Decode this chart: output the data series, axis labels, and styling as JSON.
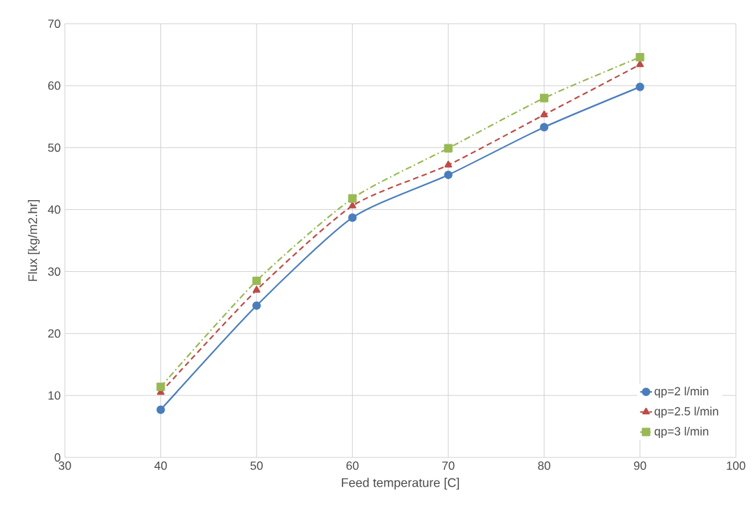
{
  "chart_data": {
    "type": "line",
    "xlabel": "Feed temperature [C]",
    "ylabel": "Flux [kg/m2.hr]",
    "x": [
      40,
      50,
      60,
      70,
      80,
      90
    ],
    "series": [
      {
        "name": "qp=2 l/min",
        "color": "#4a7ebb",
        "marker": "circle",
        "line_style": "solid",
        "values": [
          7.7,
          24.5,
          38.7,
          45.6,
          53.3,
          59.8
        ]
      },
      {
        "name": "qp=2.5 l/min",
        "color": "#be4b48",
        "marker": "triangle",
        "line_style": "dashed",
        "values": [
          10.5,
          27.0,
          40.6,
          47.2,
          55.3,
          63.4
        ]
      },
      {
        "name": "qp=3 l/min",
        "color": "#98b954",
        "marker": "square",
        "line_style": "dashdot",
        "values": [
          11.4,
          28.5,
          41.8,
          49.9,
          58.0,
          64.6
        ]
      }
    ],
    "xlim": [
      30,
      100
    ],
    "xticks": [
      30,
      40,
      50,
      60,
      70,
      80,
      90,
      100
    ],
    "ylim": [
      0,
      70
    ],
    "yticks": [
      0,
      10,
      20,
      30,
      40,
      50,
      60,
      70
    ],
    "grid": true,
    "legend": "bottom right"
  }
}
